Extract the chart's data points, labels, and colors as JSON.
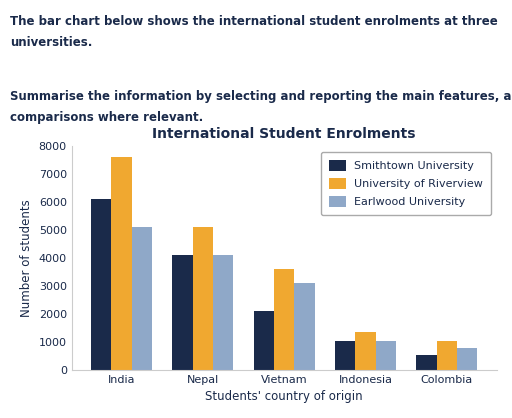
{
  "title": "International Student Enrolments",
  "xlabel": "Students' country of origin",
  "ylabel": "Number of students",
  "categories": [
    "India",
    "Nepal",
    "Vietnam",
    "Indonesia",
    "Colombia"
  ],
  "series": [
    {
      "name": "Smithtown University",
      "color": "#1a2a4a",
      "values": [
        6100,
        4100,
        2100,
        1050,
        550
      ]
    },
    {
      "name": "University of Riverview",
      "color": "#f0a830",
      "values": [
        7600,
        5100,
        3600,
        1350,
        1050
      ]
    },
    {
      "name": "Earlwood University",
      "color": "#8fa8c8",
      "values": [
        5100,
        4100,
        3100,
        1050,
        800
      ]
    }
  ],
  "ylim": [
    0,
    8000
  ],
  "yticks": [
    0,
    1000,
    2000,
    3000,
    4000,
    5000,
    6000,
    7000,
    8000
  ],
  "bar_width": 0.25,
  "background_color": "#ffffff",
  "title_fontsize": 10,
  "axis_label_fontsize": 8.5,
  "tick_fontsize": 8,
  "legend_fontsize": 8,
  "header_color": "#1a2a4a",
  "header_fontsize": 8.5,
  "header_lines": [
    "The bar chart below shows the international student enrolments at three",
    "universities.",
    "",
    "Summarise the information by selecting and reporting the main features, and make",
    "comparisons where relevant."
  ]
}
